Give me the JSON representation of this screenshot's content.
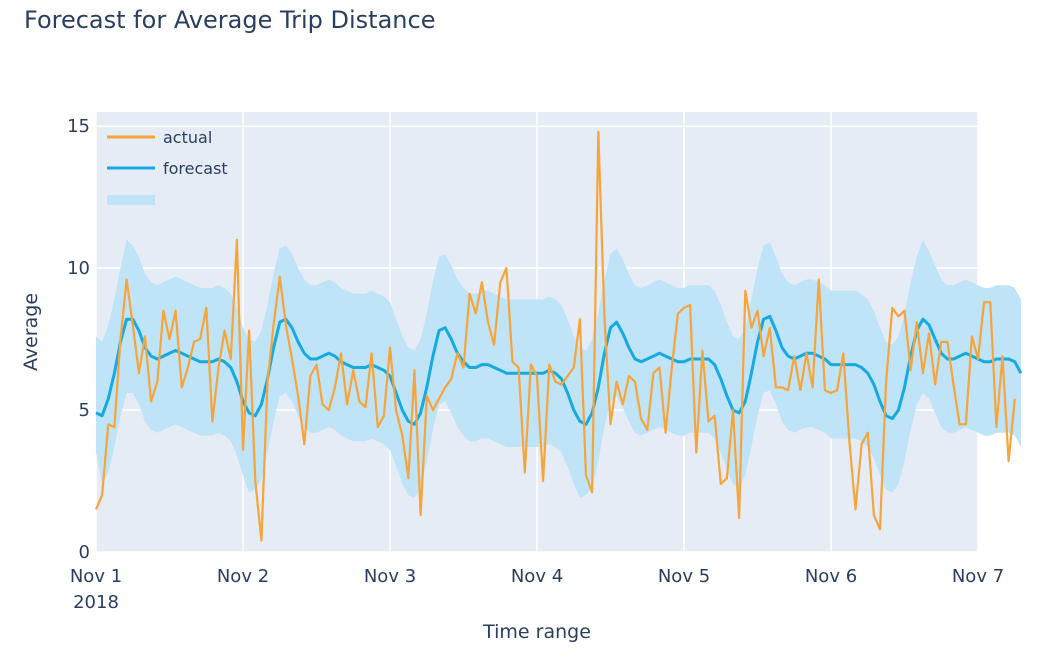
{
  "chart_data": {
    "type": "line",
    "title": "Forecast for Average Trip Distance",
    "xlabel": "Time range",
    "ylabel": "Average",
    "x_start": "2018-11-01T00:00",
    "x_step_hours": 1,
    "xlim": [
      "2018-11-01",
      "2018-11-07"
    ],
    "ylim": [
      0,
      15.5
    ],
    "x_ticks": [
      {
        "label": "Nov 1",
        "sub": "2018"
      },
      {
        "label": "Nov 2",
        "sub": ""
      },
      {
        "label": "Nov 3",
        "sub": ""
      },
      {
        "label": "Nov 4",
        "sub": ""
      },
      {
        "label": "Nov 5",
        "sub": ""
      },
      {
        "label": "Nov 6",
        "sub": ""
      },
      {
        "label": "Nov 7",
        "sub": ""
      }
    ],
    "y_ticks": [
      0,
      5,
      10,
      15
    ],
    "grid": true,
    "legend_position": "top-left",
    "series": [
      {
        "name": "actual",
        "color": "#f7a43a",
        "values": [
          1.5,
          2.0,
          4.5,
          4.4,
          7.5,
          9.6,
          8.0,
          6.3,
          7.6,
          5.3,
          6.0,
          8.5,
          7.5,
          8.5,
          5.8,
          6.5,
          7.4,
          7.5,
          8.6,
          4.6,
          6.5,
          7.8,
          6.8,
          11.0,
          3.6,
          7.8,
          2.5,
          0.4,
          6.0,
          8.0,
          9.7,
          8.0,
          6.8,
          5.5,
          3.8,
          6.2,
          6.6,
          5.2,
          5.0,
          5.8,
          7.0,
          5.2,
          6.4,
          5.3,
          5.1,
          7.0,
          4.4,
          4.8,
          7.2,
          5.0,
          4.1,
          2.6,
          6.4,
          1.3,
          5.5,
          5.0,
          5.4,
          5.8,
          6.1,
          7.0,
          6.5,
          9.1,
          8.4,
          9.5,
          8.1,
          7.3,
          9.5,
          10.0,
          6.7,
          6.5,
          2.8,
          6.6,
          6.2,
          2.5,
          6.6,
          6.0,
          5.9,
          6.2,
          6.5,
          8.2,
          2.7,
          2.1,
          14.8,
          8.3,
          4.5,
          6.0,
          5.2,
          6.2,
          6.0,
          4.7,
          4.3,
          6.3,
          6.5,
          4.2,
          6.5,
          8.4,
          8.6,
          8.7,
          3.5,
          7.1,
          4.6,
          4.8,
          2.4,
          2.6,
          5.0,
          1.2,
          9.2,
          7.9,
          8.5,
          6.9,
          7.9,
          5.8,
          5.8,
          5.7,
          6.9,
          5.7,
          7.0,
          5.8,
          9.6,
          5.7,
          5.6,
          5.7,
          7.0,
          3.9,
          1.5,
          3.8,
          4.2,
          1.3,
          0.8,
          6.0,
          8.6,
          8.3,
          8.5,
          6.4,
          8.1,
          6.3,
          7.7,
          5.9,
          7.4,
          7.4,
          5.9,
          4.5,
          4.5,
          7.6,
          6.8,
          8.8,
          8.8,
          4.4,
          6.9,
          3.2,
          5.4
        ]
      },
      {
        "name": "forecast",
        "color": "#17a9e1",
        "values": [
          4.9,
          4.8,
          5.4,
          6.3,
          7.4,
          8.2,
          8.2,
          7.8,
          7.2,
          6.9,
          6.8,
          6.9,
          7.0,
          7.1,
          7.0,
          6.9,
          6.8,
          6.7,
          6.7,
          6.7,
          6.8,
          6.7,
          6.5,
          6.0,
          5.3,
          4.9,
          4.8,
          5.2,
          6.1,
          7.2,
          8.1,
          8.2,
          7.9,
          7.4,
          7.0,
          6.8,
          6.8,
          6.9,
          7.0,
          6.9,
          6.7,
          6.6,
          6.5,
          6.5,
          6.5,
          6.6,
          6.5,
          6.4,
          6.2,
          5.6,
          5.0,
          4.6,
          4.5,
          4.9,
          5.8,
          6.9,
          7.8,
          7.9,
          7.5,
          7.0,
          6.7,
          6.5,
          6.5,
          6.6,
          6.6,
          6.5,
          6.4,
          6.3,
          6.3,
          6.3,
          6.3,
          6.3,
          6.3,
          6.3,
          6.4,
          6.3,
          6.1,
          5.6,
          5.0,
          4.6,
          4.5,
          4.9,
          5.8,
          7.0,
          7.9,
          8.1,
          7.7,
          7.2,
          6.8,
          6.7,
          6.8,
          6.9,
          7.0,
          6.9,
          6.8,
          6.7,
          6.7,
          6.8,
          6.8,
          6.8,
          6.8,
          6.6,
          6.1,
          5.5,
          5.0,
          4.9,
          5.3,
          6.3,
          7.4,
          8.2,
          8.3,
          7.8,
          7.2,
          6.9,
          6.8,
          6.9,
          7.0,
          7.0,
          6.9,
          6.8,
          6.6,
          6.6,
          6.6,
          6.6,
          6.6,
          6.5,
          6.3,
          5.9,
          5.3,
          4.8,
          4.7,
          5.0,
          5.8,
          6.9,
          7.8,
          8.2,
          8.0,
          7.5,
          7.0,
          6.8,
          6.8,
          6.9,
          7.0,
          6.9,
          6.8,
          6.7,
          6.7,
          6.8,
          6.8,
          6.8,
          6.7,
          6.3
        ]
      },
      {
        "color": "#bfe4f7",
        "lower": [
          3.5,
          2.4,
          2.8,
          3.7,
          4.8,
          5.6,
          5.6,
          5.2,
          4.6,
          4.3,
          4.2,
          4.3,
          4.4,
          4.5,
          4.4,
          4.3,
          4.2,
          4.1,
          4.1,
          4.1,
          4.2,
          4.1,
          3.9,
          3.4,
          2.7,
          2.1,
          2.2,
          2.6,
          3.5,
          4.6,
          5.5,
          5.6,
          5.3,
          4.8,
          4.4,
          4.2,
          4.2,
          4.3,
          4.4,
          4.3,
          4.1,
          4.0,
          3.9,
          3.9,
          3.9,
          4.0,
          3.9,
          3.8,
          3.6,
          3.0,
          2.4,
          2.0,
          1.9,
          2.3,
          3.2,
          4.3,
          5.2,
          5.3,
          4.9,
          4.4,
          4.1,
          3.9,
          3.9,
          4.0,
          4.0,
          3.9,
          3.8,
          3.7,
          3.7,
          3.7,
          3.7,
          3.7,
          3.7,
          3.7,
          3.8,
          3.7,
          3.5,
          3.0,
          2.4,
          1.9,
          2.0,
          2.3,
          3.2,
          4.4,
          5.3,
          5.5,
          5.1,
          4.6,
          4.2,
          4.1,
          4.2,
          4.3,
          4.4,
          4.3,
          4.2,
          4.1,
          4.1,
          4.2,
          4.2,
          4.2,
          4.2,
          4.0,
          3.5,
          2.9,
          2.4,
          2.3,
          2.7,
          3.7,
          4.8,
          5.6,
          5.7,
          5.2,
          4.6,
          4.3,
          4.2,
          4.3,
          4.4,
          4.4,
          4.3,
          4.2,
          4.0,
          4.0,
          4.0,
          4.0,
          4.0,
          3.9,
          3.7,
          3.3,
          2.7,
          2.2,
          2.1,
          2.4,
          3.2,
          4.3,
          5.2,
          5.6,
          5.4,
          4.9,
          4.4,
          4.2,
          4.2,
          4.3,
          4.4,
          4.3,
          4.2,
          4.1,
          4.1,
          4.2,
          4.2,
          4.2,
          4.1,
          3.7
        ],
        "upper": [
          7.6,
          7.4,
          8.0,
          8.9,
          10.0,
          11.0,
          10.8,
          10.4,
          9.8,
          9.5,
          9.4,
          9.5,
          9.6,
          9.7,
          9.6,
          9.5,
          9.4,
          9.3,
          9.3,
          9.3,
          9.4,
          9.3,
          9.1,
          8.6,
          7.9,
          7.5,
          7.4,
          7.8,
          8.7,
          9.8,
          10.7,
          10.8,
          10.5,
          10.0,
          9.6,
          9.4,
          9.4,
          9.5,
          9.6,
          9.5,
          9.3,
          9.2,
          9.1,
          9.1,
          9.1,
          9.2,
          9.1,
          9.0,
          8.8,
          8.2,
          7.6,
          7.2,
          7.1,
          7.5,
          8.4,
          9.5,
          10.4,
          10.5,
          10.1,
          9.6,
          9.3,
          9.1,
          9.1,
          9.2,
          9.2,
          9.1,
          9.0,
          8.9,
          8.9,
          8.9,
          8.9,
          8.9,
          8.9,
          8.9,
          9.0,
          8.9,
          8.7,
          8.2,
          7.6,
          7.2,
          7.1,
          7.5,
          8.4,
          9.6,
          10.5,
          10.7,
          10.3,
          9.8,
          9.4,
          9.3,
          9.4,
          9.5,
          9.6,
          9.5,
          9.4,
          9.3,
          9.3,
          9.4,
          9.4,
          9.4,
          9.4,
          9.2,
          8.7,
          8.1,
          7.6,
          7.5,
          7.9,
          8.9,
          10.0,
          10.8,
          10.9,
          10.4,
          9.8,
          9.5,
          9.4,
          9.5,
          9.6,
          9.6,
          9.5,
          9.4,
          9.2,
          9.2,
          9.2,
          9.2,
          9.2,
          9.1,
          8.9,
          8.5,
          7.9,
          7.4,
          7.3,
          7.6,
          8.4,
          9.5,
          10.4,
          11.0,
          10.6,
          10.1,
          9.6,
          9.4,
          9.4,
          9.5,
          9.6,
          9.5,
          9.4,
          9.3,
          9.3,
          9.4,
          9.4,
          9.4,
          9.3,
          8.9
        ]
      }
    ]
  }
}
